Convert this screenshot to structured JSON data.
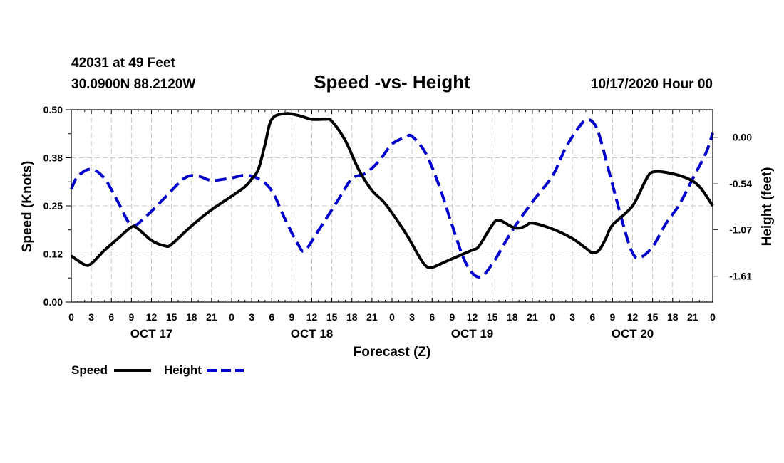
{
  "header": {
    "station": "42031 at 49 Feet",
    "coords": "30.0900N 88.2120W",
    "title": "Speed -vs- Height",
    "date": "10/17/2020 Hour 00"
  },
  "chart_data": {
    "type": "line",
    "title": "Speed -vs- Height",
    "xlabel": "Forecast (Z)",
    "ylabel_left": "Speed (Knots)",
    "ylabel_right": "Height (feet)",
    "x_unit": "forecast hour from 10/17 00Z",
    "xlim": [
      0,
      96
    ],
    "ylim_left": [
      0,
      0.5
    ],
    "ylim_right": [
      -1.91,
      0.32
    ],
    "x_tick_labels": [
      "0",
      "3",
      "6",
      "9",
      "12",
      "15",
      "18",
      "21",
      "0",
      "3",
      "6",
      "9",
      "12",
      "15",
      "18",
      "21",
      "0",
      "3",
      "6",
      "9",
      "12",
      "15",
      "18",
      "21",
      "0",
      "3",
      "6",
      "9",
      "12",
      "15",
      "18",
      "21",
      "0"
    ],
    "day_labels": [
      {
        "label": "OCT 17",
        "hour": 12
      },
      {
        "label": "OCT 18",
        "hour": 36
      },
      {
        "label": "OCT 19",
        "hour": 60
      },
      {
        "label": "OCT 20",
        "hour": 84
      }
    ],
    "y_left_ticks": [
      {
        "value": 0.0,
        "label": "0.00"
      },
      {
        "value": 0.125,
        "label": "0.12"
      },
      {
        "value": 0.25,
        "label": "0.25"
      },
      {
        "value": 0.375,
        "label": "0.38"
      },
      {
        "value": 0.5,
        "label": "0.50"
      }
    ],
    "y_right_ticks": [
      {
        "value": 0.0,
        "label": "0.00"
      },
      {
        "value": -0.54,
        "label": "-0.54"
      },
      {
        "value": -1.07,
        "label": "-1.07"
      },
      {
        "value": -1.61,
        "label": "-1.61"
      }
    ],
    "series": [
      {
        "name": "Speed",
        "axis": "left",
        "color": "#000000",
        "style": "solid",
        "points": [
          [
            0,
            0.12
          ],
          [
            2,
            0.097
          ],
          [
            3,
            0.1
          ],
          [
            5,
            0.135
          ],
          [
            7,
            0.165
          ],
          [
            9,
            0.195
          ],
          [
            10,
            0.19
          ],
          [
            12,
            0.16
          ],
          [
            14,
            0.146
          ],
          [
            15,
            0.15
          ],
          [
            18,
            0.198
          ],
          [
            21,
            0.24
          ],
          [
            24,
            0.275
          ],
          [
            26,
            0.3
          ],
          [
            27,
            0.32
          ],
          [
            28,
            0.345
          ],
          [
            29,
            0.41
          ],
          [
            30,
            0.475
          ],
          [
            32,
            0.49
          ],
          [
            34,
            0.485
          ],
          [
            36,
            0.475
          ],
          [
            38,
            0.475
          ],
          [
            39,
            0.47
          ],
          [
            41,
            0.42
          ],
          [
            43,
            0.345
          ],
          [
            45,
            0.29
          ],
          [
            47,
            0.255
          ],
          [
            50,
            0.18
          ],
          [
            52,
            0.12
          ],
          [
            53,
            0.095
          ],
          [
            54,
            0.09
          ],
          [
            56,
            0.105
          ],
          [
            58,
            0.12
          ],
          [
            60,
            0.135
          ],
          [
            61,
            0.145
          ],
          [
            63,
            0.2
          ],
          [
            64,
            0.213
          ],
          [
            66,
            0.195
          ],
          [
            67,
            0.192
          ],
          [
            68,
            0.198
          ],
          [
            69,
            0.205
          ],
          [
            72,
            0.19
          ],
          [
            75,
            0.165
          ],
          [
            77,
            0.14
          ],
          [
            78,
            0.128
          ],
          [
            79,
            0.135
          ],
          [
            80,
            0.165
          ],
          [
            81,
            0.2
          ],
          [
            84,
            0.25
          ],
          [
            86,
            0.318
          ],
          [
            87,
            0.338
          ],
          [
            89,
            0.337
          ],
          [
            92,
            0.323
          ],
          [
            94,
            0.3
          ],
          [
            96,
            0.25
          ]
        ]
      },
      {
        "name": "Height",
        "axis": "right",
        "color": "#0000cc",
        "style": "dashed",
        "points": [
          [
            0,
            -0.6
          ],
          [
            1,
            -0.45
          ],
          [
            3,
            -0.37
          ],
          [
            5,
            -0.48
          ],
          [
            7,
            -0.75
          ],
          [
            9,
            -1.02
          ],
          [
            11,
            -0.93
          ],
          [
            14,
            -0.7
          ],
          [
            17,
            -0.47
          ],
          [
            19,
            -0.45
          ],
          [
            21,
            -0.5
          ],
          [
            24,
            -0.47
          ],
          [
            26,
            -0.44
          ],
          [
            28,
            -0.48
          ],
          [
            30,
            -0.62
          ],
          [
            32,
            -0.95
          ],
          [
            34,
            -1.25
          ],
          [
            35,
            -1.31
          ],
          [
            37,
            -1.08
          ],
          [
            40,
            -0.72
          ],
          [
            42,
            -0.48
          ],
          [
            44,
            -0.42
          ],
          [
            46,
            -0.28
          ],
          [
            48,
            -0.08
          ],
          [
            50,
            0.0
          ],
          [
            51,
            0.01
          ],
          [
            53,
            -0.18
          ],
          [
            55,
            -0.55
          ],
          [
            57,
            -1.02
          ],
          [
            59,
            -1.45
          ],
          [
            61,
            -1.62
          ],
          [
            63,
            -1.47
          ],
          [
            66,
            -1.08
          ],
          [
            69,
            -0.75
          ],
          [
            72,
            -0.45
          ],
          [
            74,
            -0.12
          ],
          [
            76,
            0.12
          ],
          [
            77,
            0.2
          ],
          [
            78,
            0.18
          ],
          [
            79,
            0.03
          ],
          [
            81,
            -0.55
          ],
          [
            83,
            -1.12
          ],
          [
            84,
            -1.34
          ],
          [
            85,
            -1.4
          ],
          [
            87,
            -1.27
          ],
          [
            89,
            -1.0
          ],
          [
            91,
            -0.78
          ],
          [
            93,
            -0.48
          ],
          [
            95,
            -0.18
          ],
          [
            96,
            0.05
          ]
        ]
      }
    ]
  },
  "legend": {
    "speed_label": "Speed",
    "height_label": "Height",
    "speed_color": "#000000",
    "height_color": "#0000cc"
  }
}
